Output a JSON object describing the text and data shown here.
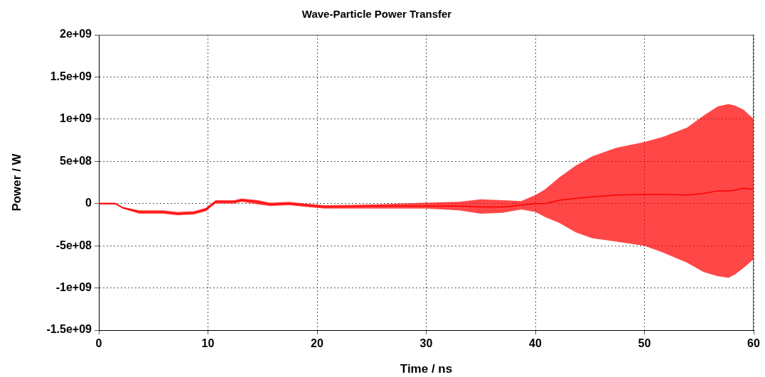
{
  "chart_data": {
    "type": "line",
    "title": "Wave-Particle Power Transfer",
    "xlabel": "Time / ns",
    "ylabel": "Power / W",
    "x": [
      0,
      1.5,
      2.2,
      3.7,
      5.9,
      7.2,
      8.7,
      9.8,
      10.7,
      12.4,
      13.1,
      14.6,
      15.7,
      17.4,
      19,
      20.7,
      25,
      30,
      33,
      35,
      37,
      38.7,
      40,
      40.9,
      42.2,
      43.7,
      45.2,
      47.4,
      50,
      51.7,
      53.9,
      55.4,
      56.7,
      57.7,
      58.3,
      59.1,
      60
    ],
    "series": [
      {
        "color": "#ff0000",
        "values": [
          0,
          0,
          -50000000.0,
          -100000000.0,
          -100000000.0,
          -120000000.0,
          -110000000.0,
          -70000000.0,
          20000000.0,
          20000000.0,
          40000000.0,
          20000000.0,
          -10000000.0,
          0,
          -20000000.0,
          -40000000.0,
          -30000000.0,
          -30000000.0,
          -30000000.0,
          -40000000.0,
          -40000000.0,
          -20000000.0,
          0,
          0,
          40000000.0,
          60000000.0,
          80000000.0,
          100000000.0,
          110000000.0,
          110000000.0,
          100000000.0,
          120000000.0,
          150000000.0,
          150000000.0,
          160000000.0,
          180000000.0,
          170000000.0
        ],
        "lower": [
          -10000000.0,
          -10000000.0,
          -60000000.0,
          -120000000.0,
          -120000000.0,
          -140000000.0,
          -130000000.0,
          -90000000.0,
          0,
          0,
          20000000.0,
          -10000000.0,
          -30000000.0,
          -20000000.0,
          -40000000.0,
          -60000000.0,
          -60000000.0,
          -60000000.0,
          -80000000.0,
          -120000000.0,
          -110000000.0,
          -70000000.0,
          -100000000.0,
          -160000000.0,
          -230000000.0,
          -340000000.0,
          -410000000.0,
          -450000000.0,
          -500000000.0,
          -580000000.0,
          -700000000.0,
          -810000000.0,
          -860000000.0,
          -880000000.0,
          -840000000.0,
          -760000000.0,
          -660000000.0
        ],
        "upper": [
          10000000.0,
          10000000.0,
          -40000000.0,
          -80000000.0,
          -80000000.0,
          -100000000.0,
          -90000000.0,
          -50000000.0,
          40000000.0,
          40000000.0,
          60000000.0,
          40000000.0,
          10000000.0,
          20000000.0,
          0,
          -20000000.0,
          -10000000.0,
          10000000.0,
          20000000.0,
          50000000.0,
          40000000.0,
          30000000.0,
          100000000.0,
          170000000.0,
          310000000.0,
          450000000.0,
          560000000.0,
          660000000.0,
          730000000.0,
          790000000.0,
          900000000.0,
          1040000000.0,
          1150000000.0,
          1180000000.0,
          1160000000.0,
          1110000000.0,
          1000000000.0
        ]
      }
    ],
    "xlim": [
      0,
      60
    ],
    "xticks": [
      0,
      10,
      20,
      30,
      40,
      50,
      60
    ],
    "ylim": [
      -1500000000,
      2000000000
    ],
    "yticks": [
      {
        "value": -1500000000,
        "label": "-1.5e+09"
      },
      {
        "value": -1000000000,
        "label": "-1e+09"
      },
      {
        "value": -500000000,
        "label": "-5e+08"
      },
      0,
      {
        "value": 500000000,
        "label": "5e+08"
      },
      {
        "value": 1000000000,
        "label": "1e+09"
      },
      {
        "value": 1500000000,
        "label": "1.5e+09"
      },
      {
        "value": 2000000000,
        "label": "2e+09"
      }
    ],
    "grid": true
  }
}
